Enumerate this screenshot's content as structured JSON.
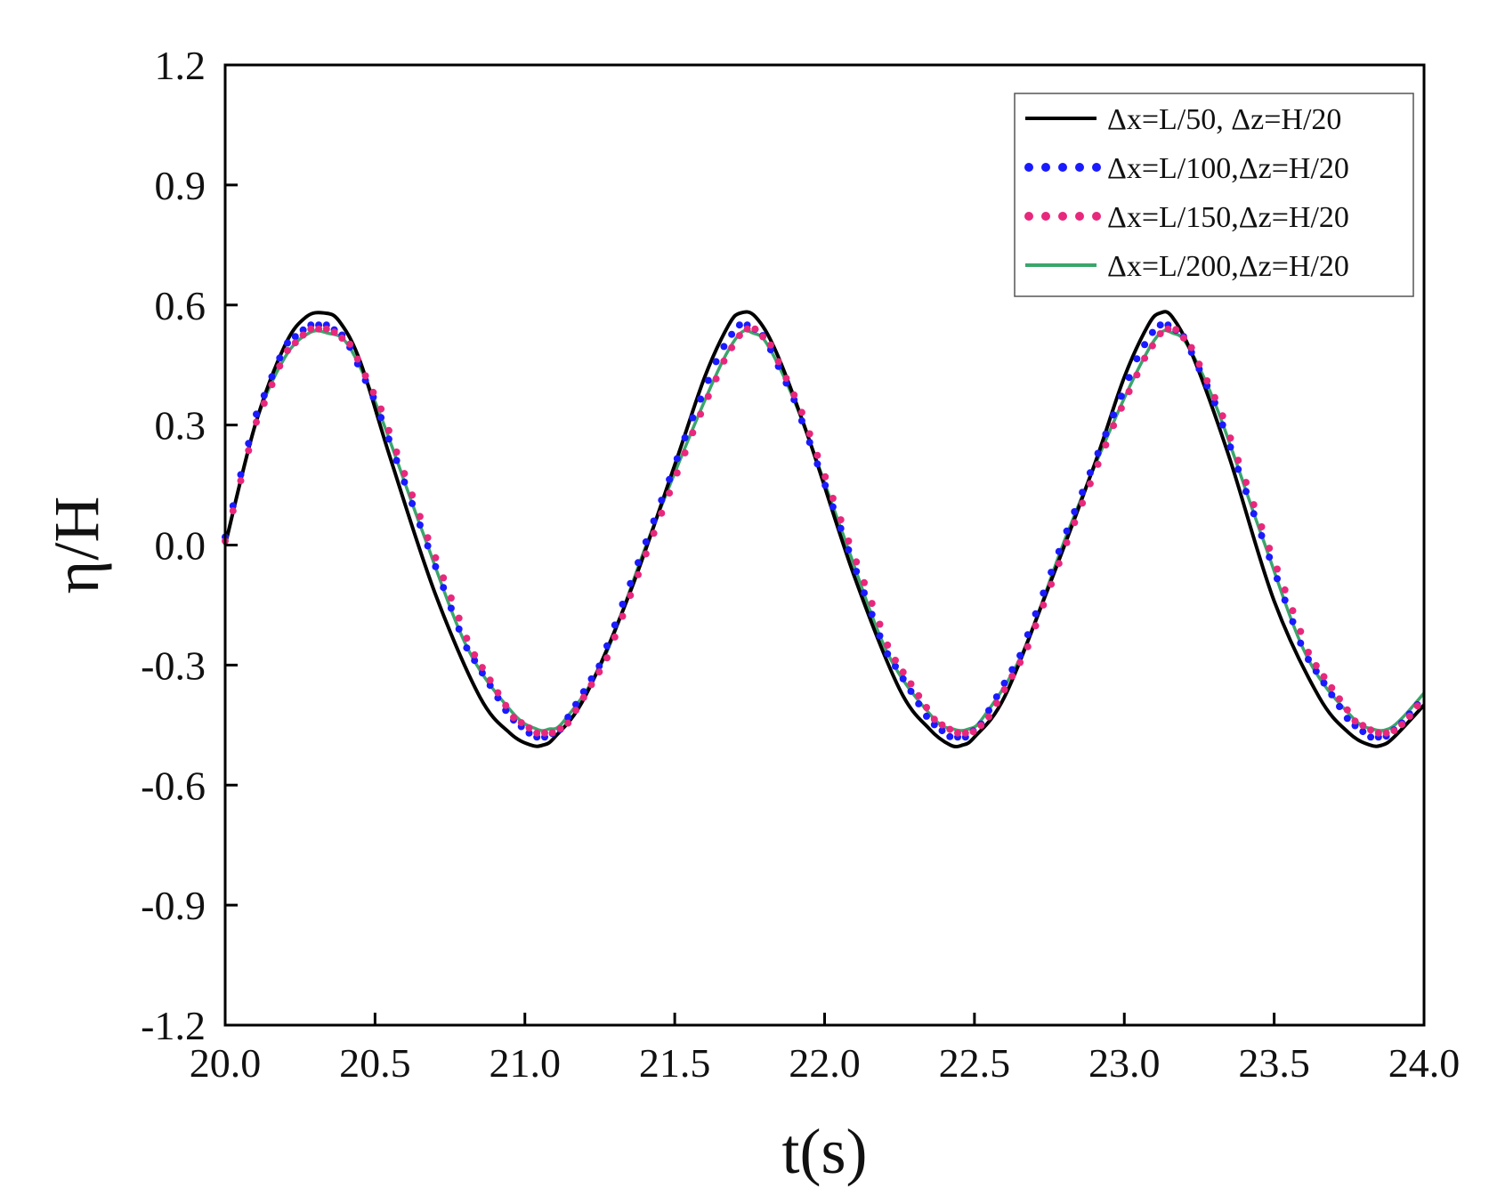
{
  "chart_data": {
    "type": "line",
    "title": "",
    "xlabel": "t(s)",
    "ylabel": "η/H",
    "xlim": [
      20.0,
      24.0
    ],
    "ylim": [
      -1.2,
      1.2
    ],
    "xticks": [
      "20.0",
      "20.5",
      "21.0",
      "21.5",
      "22.0",
      "22.5",
      "23.0",
      "23.5",
      "24.0"
    ],
    "yticks": [
      "1.2",
      "0.9",
      "0.6",
      "0.3",
      "0.0",
      "-0.3",
      "-0.6",
      "-0.9",
      "-1.2"
    ],
    "grid": false,
    "legend_position": "top-right",
    "wave_period": 1.39,
    "series": [
      {
        "name": "Δx=L/50, Δz=H/20",
        "color": "#000000",
        "style": "solid",
        "x": [
          20.0,
          20.1,
          20.2,
          20.27,
          20.33,
          20.38,
          20.45,
          20.55,
          20.7,
          20.85,
          20.95,
          21.02,
          21.06,
          21.1,
          21.2,
          21.35,
          21.5,
          21.6,
          21.68,
          21.72,
          21.77,
          21.84,
          21.95,
          22.1,
          22.25,
          22.35,
          22.42,
          22.46,
          22.5,
          22.6,
          22.75,
          22.9,
          23.0,
          23.08,
          23.12,
          23.16,
          23.23,
          23.35,
          23.5,
          23.65,
          23.75,
          23.82,
          23.86,
          23.9,
          24.0
        ],
        "y": [
          0.0,
          0.3,
          0.5,
          0.57,
          0.58,
          0.56,
          0.46,
          0.22,
          -0.12,
          -0.38,
          -0.47,
          -0.5,
          -0.5,
          -0.48,
          -0.38,
          -0.12,
          0.2,
          0.42,
          0.55,
          0.58,
          0.57,
          0.48,
          0.26,
          -0.08,
          -0.36,
          -0.46,
          -0.5,
          -0.5,
          -0.48,
          -0.38,
          -0.1,
          0.2,
          0.42,
          0.55,
          0.58,
          0.57,
          0.47,
          0.22,
          -0.14,
          -0.38,
          -0.47,
          -0.5,
          -0.5,
          -0.48,
          -0.4
        ]
      },
      {
        "name": "Δx=L/100,Δz=H/20",
        "color": "#1a1aff",
        "style": "dotted",
        "x": [
          20.0,
          20.1,
          20.2,
          20.28,
          20.34,
          20.4,
          20.5,
          20.65,
          20.8,
          20.95,
          21.03,
          21.07,
          21.12,
          21.25,
          21.4,
          21.55,
          21.65,
          21.71,
          21.75,
          21.8,
          21.9,
          22.05,
          22.2,
          22.35,
          22.42,
          22.47,
          22.52,
          22.65,
          22.8,
          22.95,
          23.05,
          23.11,
          23.15,
          23.2,
          23.3,
          23.45,
          23.6,
          23.75,
          23.82,
          23.87,
          23.92,
          24.0
        ],
        "y": [
          0.02,
          0.32,
          0.5,
          0.55,
          0.55,
          0.52,
          0.36,
          0.05,
          -0.25,
          -0.43,
          -0.48,
          -0.48,
          -0.46,
          -0.3,
          0.0,
          0.3,
          0.48,
          0.55,
          0.55,
          0.52,
          0.36,
          0.05,
          -0.26,
          -0.44,
          -0.48,
          -0.48,
          -0.45,
          -0.28,
          0.02,
          0.3,
          0.48,
          0.55,
          0.55,
          0.52,
          0.36,
          0.04,
          -0.27,
          -0.44,
          -0.48,
          -0.48,
          -0.45,
          -0.38
        ]
      },
      {
        "name": "Δx=L/150,Δz=H/20",
        "color": "#e8287c",
        "style": "dotted",
        "x": [
          20.0,
          20.1,
          20.2,
          20.28,
          20.35,
          20.42,
          20.52,
          20.67,
          20.82,
          20.96,
          21.04,
          21.09,
          21.14,
          21.27,
          21.42,
          21.57,
          21.67,
          21.73,
          21.77,
          21.82,
          21.92,
          22.07,
          22.22,
          22.37,
          22.44,
          22.49,
          22.54,
          22.67,
          22.82,
          22.97,
          23.07,
          23.13,
          23.17,
          23.22,
          23.32,
          23.47,
          23.62,
          23.77,
          23.84,
          23.89,
          23.94,
          24.0
        ],
        "y": [
          0.01,
          0.3,
          0.48,
          0.54,
          0.54,
          0.5,
          0.34,
          0.03,
          -0.26,
          -0.43,
          -0.47,
          -0.47,
          -0.45,
          -0.29,
          0.01,
          0.3,
          0.47,
          0.54,
          0.54,
          0.5,
          0.34,
          0.03,
          -0.27,
          -0.44,
          -0.47,
          -0.47,
          -0.44,
          -0.27,
          0.03,
          0.31,
          0.47,
          0.54,
          0.54,
          0.5,
          0.34,
          0.02,
          -0.28,
          -0.44,
          -0.47,
          -0.47,
          -0.44,
          -0.38
        ]
      },
      {
        "name": "Δx=L/200,Δz=H/20",
        "color": "#3aa66a",
        "style": "solid",
        "x": [
          20.0,
          20.1,
          20.2,
          20.28,
          20.34,
          20.41,
          20.51,
          20.66,
          20.81,
          20.96,
          21.04,
          21.08,
          21.13,
          21.26,
          21.41,
          21.56,
          21.66,
          21.72,
          21.76,
          21.81,
          21.91,
          22.06,
          22.21,
          22.36,
          22.43,
          22.48,
          22.53,
          22.66,
          22.81,
          22.96,
          23.06,
          23.12,
          23.16,
          23.21,
          23.31,
          23.46,
          23.61,
          23.76,
          23.83,
          23.88,
          23.93,
          24.0
        ],
        "y": [
          0.0,
          0.3,
          0.47,
          0.53,
          0.53,
          0.5,
          0.34,
          0.03,
          -0.26,
          -0.42,
          -0.46,
          -0.46,
          -0.44,
          -0.29,
          0.01,
          0.29,
          0.46,
          0.53,
          0.53,
          0.5,
          0.34,
          0.03,
          -0.27,
          -0.43,
          -0.46,
          -0.46,
          -0.43,
          -0.27,
          0.03,
          0.3,
          0.46,
          0.53,
          0.53,
          0.5,
          0.34,
          0.02,
          -0.28,
          -0.43,
          -0.46,
          -0.46,
          -0.43,
          -0.37
        ]
      }
    ]
  }
}
